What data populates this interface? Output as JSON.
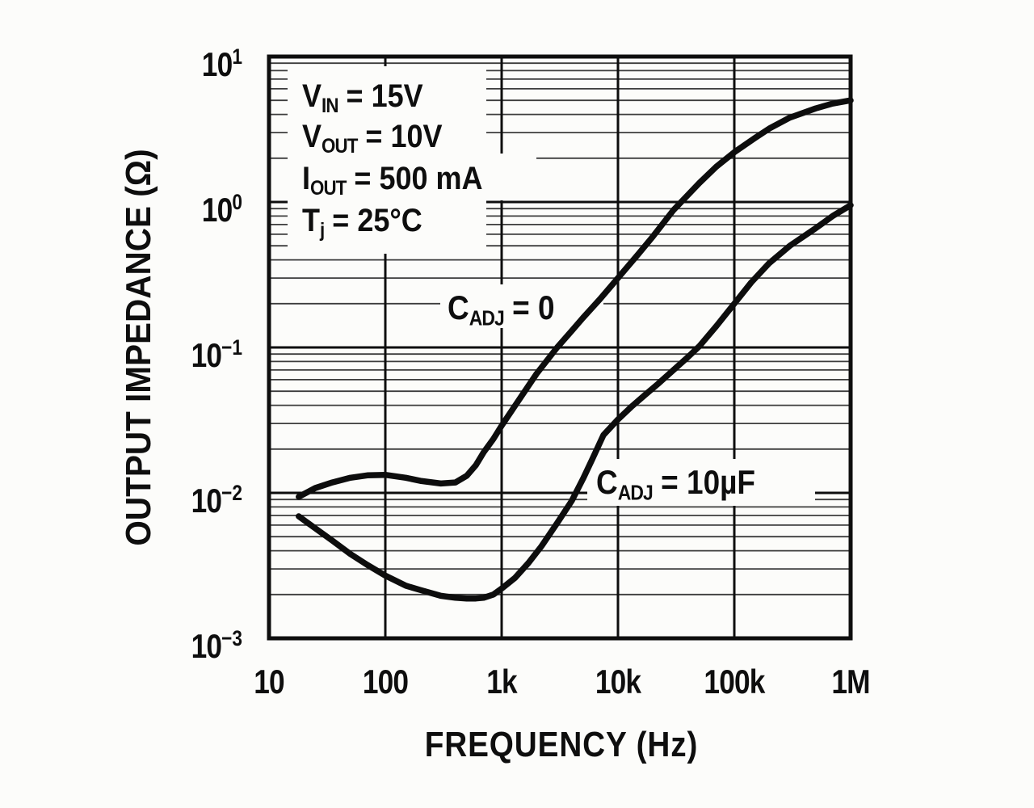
{
  "figure": {
    "background_color": "#fcfcfa",
    "ink_color": "#0e0e0e"
  },
  "chart_data": {
    "type": "line",
    "title": "",
    "xlabel": "FREQUENCY (Hz)",
    "ylabel": "OUTPUT IMPEDANCE (Ω)",
    "x_scale": "log",
    "y_scale": "log",
    "xlim": [
      10,
      1000000
    ],
    "ylim": [
      0.001,
      10
    ],
    "grid": "log major and minor horizontal lines, major vertical decade lines",
    "legend_position": "inline curve labels",
    "x_ticks": [
      {
        "value": 10,
        "label": "10"
      },
      {
        "value": 100,
        "label": "100"
      },
      {
        "value": 1000,
        "label": "1k"
      },
      {
        "value": 10000,
        "label": "10k"
      },
      {
        "value": 100000,
        "label": "100k"
      },
      {
        "value": 1000000,
        "label": "1M"
      }
    ],
    "y_ticks": [
      {
        "value": 10,
        "base": "10",
        "exp": "1"
      },
      {
        "value": 1,
        "base": "10",
        "exp": "0"
      },
      {
        "value": 0.1,
        "base": "10",
        "exp": "−1"
      },
      {
        "value": 0.01,
        "base": "10",
        "exp": "−2"
      },
      {
        "value": 0.001,
        "base": "10",
        "exp": "−3"
      }
    ],
    "conditions": [
      {
        "pre": "V",
        "sub": "IN",
        "post": " = 15V"
      },
      {
        "pre": "V",
        "sub": "OUT",
        "post": " = 10V"
      },
      {
        "pre": "I",
        "sub": "OUT",
        "post": " = 500 mA"
      },
      {
        "pre": "T",
        "sub": "j",
        "post": " = 25°C"
      }
    ],
    "series": [
      {
        "name": "CADJ = 0",
        "label": {
          "pre": "C",
          "sub": "ADJ",
          "post": " = 0"
        },
        "points": [
          [
            18,
            0.0094
          ],
          [
            25,
            0.0108
          ],
          [
            35,
            0.0118
          ],
          [
            50,
            0.0127
          ],
          [
            70,
            0.0132
          ],
          [
            100,
            0.0133
          ],
          [
            150,
            0.0127
          ],
          [
            200,
            0.0121
          ],
          [
            300,
            0.0116
          ],
          [
            400,
            0.0118
          ],
          [
            500,
            0.0131
          ],
          [
            600,
            0.0155
          ],
          [
            700,
            0.019
          ],
          [
            850,
            0.0235
          ],
          [
            1000,
            0.029
          ],
          [
            1500,
            0.047
          ],
          [
            2000,
            0.066
          ],
          [
            3000,
            0.1
          ],
          [
            4000,
            0.13
          ],
          [
            5000,
            0.16
          ],
          [
            7000,
            0.215
          ],
          [
            10000,
            0.3
          ],
          [
            15000,
            0.44
          ],
          [
            20000,
            0.58
          ],
          [
            30000,
            0.88
          ],
          [
            50000,
            1.35
          ],
          [
            70000,
            1.75
          ],
          [
            100000,
            2.2
          ],
          [
            150000,
            2.75
          ],
          [
            200000,
            3.2
          ],
          [
            300000,
            3.8
          ],
          [
            500000,
            4.4
          ],
          [
            700000,
            4.75
          ],
          [
            1000000,
            5.0
          ]
        ]
      },
      {
        "name": "CADJ = 10µF",
        "label": {
          "pre": "C",
          "sub": "ADJ",
          "post": " = 10µF"
        },
        "points": [
          [
            18,
            0.0069
          ],
          [
            25,
            0.0057
          ],
          [
            35,
            0.0047
          ],
          [
            50,
            0.0038
          ],
          [
            70,
            0.0032
          ],
          [
            100,
            0.0027
          ],
          [
            150,
            0.0023
          ],
          [
            200,
            0.00215
          ],
          [
            300,
            0.00196
          ],
          [
            400,
            0.0019
          ],
          [
            500,
            0.00188
          ],
          [
            600,
            0.00188
          ],
          [
            700,
            0.0019
          ],
          [
            850,
            0.002
          ],
          [
            1000,
            0.0022
          ],
          [
            1300,
            0.0026
          ],
          [
            1700,
            0.0033
          ],
          [
            2200,
            0.0043
          ],
          [
            3000,
            0.0062
          ],
          [
            4000,
            0.0088
          ],
          [
            5000,
            0.0125
          ],
          [
            6000,
            0.017
          ],
          [
            7500,
            0.025
          ],
          [
            10000,
            0.032
          ],
          [
            13000,
            0.039
          ],
          [
            17000,
            0.047
          ],
          [
            22000,
            0.056
          ],
          [
            30000,
            0.07
          ],
          [
            40000,
            0.086
          ],
          [
            50000,
            0.102
          ],
          [
            70000,
            0.14
          ],
          [
            100000,
            0.2
          ],
          [
            140000,
            0.28
          ],
          [
            200000,
            0.38
          ],
          [
            300000,
            0.5
          ],
          [
            500000,
            0.66
          ],
          [
            700000,
            0.8
          ],
          [
            1000000,
            0.95
          ]
        ]
      }
    ]
  }
}
